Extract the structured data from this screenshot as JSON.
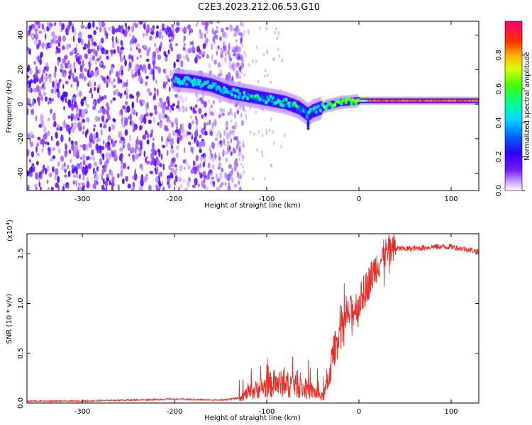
{
  "title": "C2E3.2023.212.06.53.G10",
  "colors": {
    "background": "#ffffff",
    "snr_line": "#e8302a",
    "colormap": [
      "#ffffff",
      "#e6d8ff",
      "#c9a6ff",
      "#9c4dff",
      "#6a00ff",
      "#2f00ff",
      "#0050ff",
      "#00c8ff",
      "#00ff80",
      "#7cff00",
      "#ffff00",
      "#ff8000",
      "#ff0000",
      "#ff0080"
    ]
  },
  "chart_data": [
    {
      "type": "heatmap",
      "title": "C2E3.2023.212.06.53.G10",
      "xlabel": "Height of straight line (km)",
      "ylabel": "Frequency (Hz)",
      "xlim": [
        -360,
        130
      ],
      "ylim": [
        -50,
        48
      ],
      "x_ticks": [
        -300,
        -200,
        -100,
        0,
        100
      ],
      "x_tick_labels": [
        "-300",
        "-200",
        "-100",
        "0",
        "100"
      ],
      "y_ticks": [
        -40,
        -20,
        0,
        20,
        40
      ],
      "y_tick_labels": [
        "-40",
        "-20",
        "0",
        "20",
        "40"
      ],
      "colorbar": {
        "label": "Normalized spectral amplitude",
        "range": [
          0,
          1
        ],
        "ticks": [
          0.0,
          0.2,
          0.4,
          0.6,
          0.8
        ],
        "tick_labels": [
          "0.0",
          "0.2",
          "0.4",
          "0.6",
          "0.8"
        ]
      },
      "ridge": {
        "x": [
          -200,
          -180,
          -160,
          -140,
          -120,
          -100,
          -80,
          -65,
          -55,
          -50,
          -45,
          -35,
          -20,
          0,
          20,
          50,
          80,
          95,
          110,
          130
        ],
        "y": [
          14,
          13,
          11,
          7,
          5,
          3,
          1,
          -2,
          -6,
          -4,
          -3,
          -1,
          1,
          2,
          2,
          2,
          2,
          2,
          2,
          2
        ]
      },
      "noise_region_x": [
        -360,
        -135
      ]
    },
    {
      "type": "line",
      "xlabel": "Height of straight line (km)",
      "ylabel": "SNR (10 * v/v)",
      "multiplier_label": "(x10",
      "multiplier_exponent": "4",
      "multiplier_close": ")",
      "xlim": [
        -360,
        130
      ],
      "ylim": [
        0,
        1.7
      ],
      "x_ticks": [
        -300,
        -200,
        -100,
        0,
        100
      ],
      "x_tick_labels": [
        "-300",
        "-200",
        "-100",
        "0",
        "100"
      ],
      "y_ticks": [
        0.0,
        0.5,
        1.0,
        1.5
      ],
      "y_tick_labels": [
        "0.0",
        "0.5",
        "1.0",
        "1.5"
      ],
      "series": [
        {
          "name": "SNR",
          "x": [
            -360,
            -300,
            -250,
            -200,
            -150,
            -130,
            -120,
            -110,
            -100,
            -90,
            -80,
            -70,
            -60,
            -50,
            -40,
            -35,
            -30,
            -25,
            -20,
            -10,
            0,
            10,
            20,
            30,
            40,
            60,
            80,
            100,
            120,
            130
          ],
          "y": [
            0.02,
            0.02,
            0.03,
            0.04,
            0.03,
            0.05,
            0.1,
            0.14,
            0.17,
            0.2,
            0.18,
            0.2,
            0.14,
            0.12,
            0.06,
            0.15,
            0.4,
            0.6,
            0.75,
            0.9,
            1.0,
            1.2,
            1.4,
            1.5,
            1.55,
            1.55,
            1.57,
            1.57,
            1.54,
            1.52
          ]
        }
      ]
    }
  ]
}
